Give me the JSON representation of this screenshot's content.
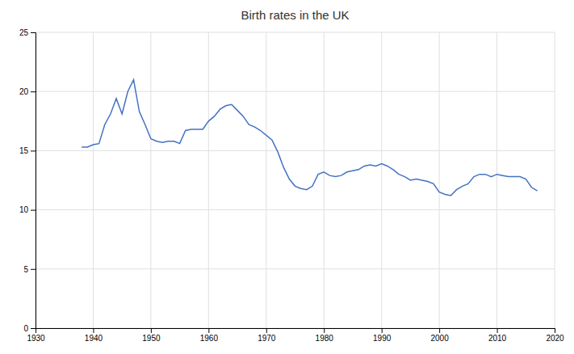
{
  "chart_data": {
    "type": "line",
    "title": "Birth rates in the UK",
    "x": [
      1938,
      1939,
      1940,
      1941,
      1942,
      1943,
      1944,
      1945,
      1946,
      1947,
      1948,
      1949,
      1950,
      1951,
      1952,
      1953,
      1954,
      1955,
      1956,
      1957,
      1958,
      1959,
      1960,
      1961,
      1962,
      1963,
      1964,
      1965,
      1966,
      1967,
      1968,
      1969,
      1970,
      1971,
      1972,
      1973,
      1974,
      1975,
      1976,
      1977,
      1978,
      1979,
      1980,
      1981,
      1982,
      1983,
      1984,
      1985,
      1986,
      1987,
      1988,
      1989,
      1990,
      1991,
      1992,
      1993,
      1994,
      1995,
      1996,
      1997,
      1998,
      1999,
      2000,
      2001,
      2002,
      2003,
      2004,
      2005,
      2006,
      2007,
      2008,
      2009,
      2010,
      2011,
      2012,
      2013,
      2014,
      2015,
      2016,
      2017
    ],
    "values": [
      15.3,
      15.3,
      15.5,
      15.6,
      17.2,
      18.1,
      19.4,
      18.1,
      20.0,
      21.0,
      18.3,
      17.2,
      16.0,
      15.8,
      15.7,
      15.8,
      15.8,
      15.6,
      16.7,
      16.8,
      16.8,
      16.8,
      17.5,
      17.9,
      18.5,
      18.8,
      18.9,
      18.4,
      17.9,
      17.2,
      17.0,
      16.7,
      16.3,
      15.9,
      14.9,
      13.6,
      12.6,
      12.0,
      11.8,
      11.7,
      12.0,
      13.0,
      13.2,
      12.9,
      12.8,
      12.9,
      13.2,
      13.3,
      13.4,
      13.7,
      13.8,
      13.7,
      13.9,
      13.7,
      13.4,
      13.0,
      12.8,
      12.5,
      12.6,
      12.5,
      12.4,
      12.2,
      11.5,
      11.3,
      11.2,
      11.7,
      12.0,
      12.2,
      12.8,
      13.0,
      13.0,
      12.8,
      13.0,
      12.9,
      12.8,
      12.8,
      12.8,
      12.6,
      11.9,
      11.6
    ],
    "color": "#4472C4",
    "xlim": [
      1930,
      2020
    ],
    "ylim": [
      0,
      25
    ],
    "xticks": [
      1930,
      1940,
      1950,
      1960,
      1970,
      1980,
      1990,
      2000,
      2010,
      2020
    ],
    "yticks": [
      0,
      5,
      10,
      15,
      20,
      25
    ],
    "grid": true
  }
}
